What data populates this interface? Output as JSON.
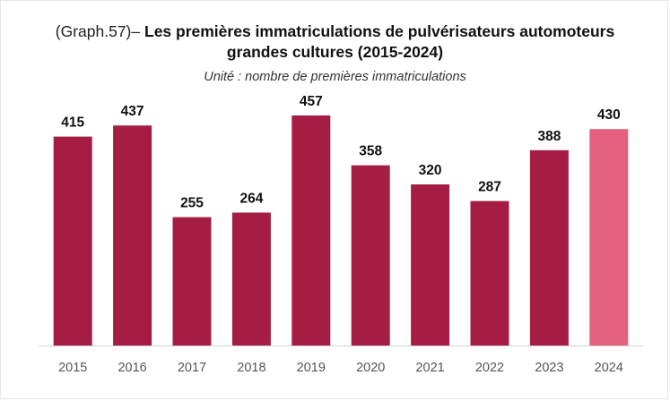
{
  "title": {
    "prefix": "(Graph.57)–",
    "line1": "Les premières immatriculations de pulvérisateurs automoteurs",
    "line2": "grandes cultures (2015-2024)"
  },
  "unit": "Unité : nombre de premières immatriculations",
  "colors": {
    "bar": "#a51d45",
    "bar_highlight": "#e4617f",
    "axis": "#d0d0d0"
  },
  "chart_data": {
    "type": "bar",
    "categories": [
      "2015",
      "2016",
      "2017",
      "2018",
      "2019",
      "2020",
      "2021",
      "2022",
      "2023",
      "2024"
    ],
    "values": [
      415,
      437,
      255,
      264,
      457,
      358,
      320,
      287,
      388,
      430
    ],
    "title": "(Graph.57)– Les premières immatriculations de pulvérisateurs automoteurs grandes cultures (2015-2024)",
    "subtitle": "Unité : nombre de premières immatriculations",
    "xlabel": "",
    "ylabel": "",
    "ylim": [
      0,
      500
    ],
    "highlight_category": "2024",
    "grid": false,
    "legend": "none"
  }
}
